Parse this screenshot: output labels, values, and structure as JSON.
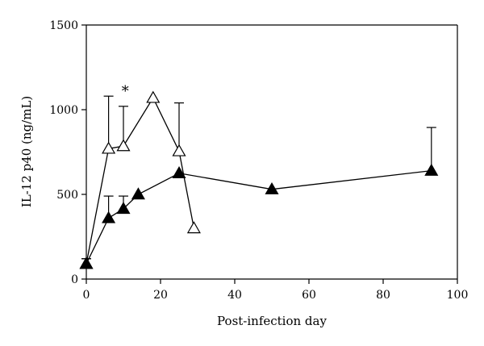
{
  "chart_data": {
    "type": "line",
    "title": "",
    "xlabel": "Post-infection day",
    "ylabel": "IL-12 p40 (ng/mL)",
    "xlim": [
      0,
      100
    ],
    "ylim": [
      0,
      1500
    ],
    "x_ticks": [
      0,
      20,
      40,
      60,
      80,
      100
    ],
    "y_ticks": [
      0,
      500,
      1000,
      1500
    ],
    "grid": false,
    "legend": "none",
    "series": [
      {
        "marker": "open-triangle",
        "color": "#000000",
        "points": [
          {
            "x": 0,
            "y": 90,
            "err": 30
          },
          {
            "x": 6,
            "y": 770,
            "err": 310
          },
          {
            "x": 10,
            "y": 785,
            "err": 235
          },
          {
            "x": 18,
            "y": 1070,
            "err": 0
          },
          {
            "x": 25,
            "y": 755,
            "err": 285
          },
          {
            "x": 29,
            "y": 300,
            "err": 0
          }
        ]
      },
      {
        "marker": "filled-triangle",
        "color": "#000000",
        "points": [
          {
            "x": 0,
            "y": 90,
            "err": 30
          },
          {
            "x": 6,
            "y": 360,
            "err": 130
          },
          {
            "x": 10,
            "y": 415,
            "err": 75
          },
          {
            "x": 14,
            "y": 500,
            "err": 0
          },
          {
            "x": 25,
            "y": 625,
            "err": 0
          },
          {
            "x": 50,
            "y": 530,
            "err": 0
          },
          {
            "x": 93,
            "y": 640,
            "err": 255
          }
        ]
      }
    ],
    "annotations": [
      {
        "text": "*",
        "x": 10.5,
        "y": 1080
      }
    ]
  }
}
